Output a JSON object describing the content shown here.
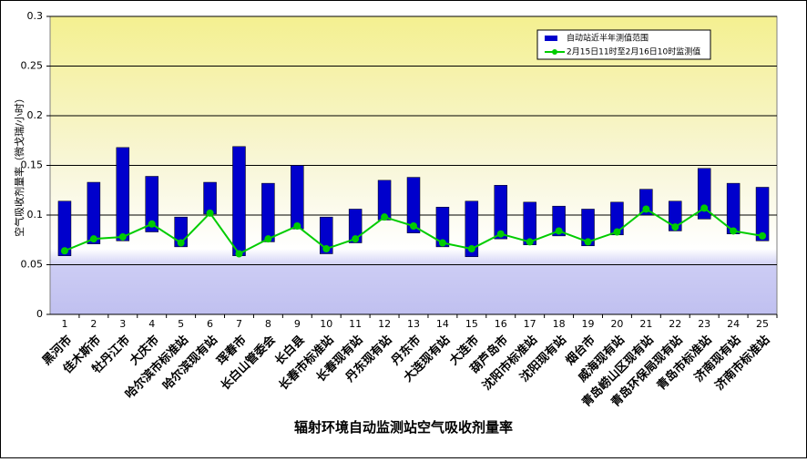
{
  "chart_data": {
    "type": "bar",
    "title": "辐射环境自动监测站空气吸收剂量率",
    "y_label": "空气吸收剂量率（微戈瑞/小时）",
    "category_numbers": [
      1,
      2,
      3,
      4,
      5,
      6,
      7,
      8,
      9,
      10,
      11,
      12,
      13,
      14,
      15,
      16,
      17,
      18,
      19,
      20,
      21,
      22,
      23,
      24,
      25
    ],
    "categories": [
      "黑河市",
      "佳木斯市",
      "牡丹江市",
      "大庆市",
      "哈尔滨市标准站",
      "哈尔滨现有站",
      "珲春市",
      "长白山管委会",
      "长白县",
      "长春市标准站",
      "长春现有站",
      "丹东现有站",
      "丹东市",
      "大连现有站",
      "大连市",
      "葫芦岛市",
      "沈阳市标准站",
      "沈阳现有站",
      "烟台市",
      "威海现有站",
      "青岛崂山区现有站",
      "青岛环保局现有站",
      "青岛市标准站",
      "济南现有站",
      "济南市标准站"
    ],
    "series": [
      {
        "name": "自动站近半年测值范围",
        "color": "#0000cc",
        "low": [
          0.059,
          0.071,
          0.074,
          0.083,
          0.068,
          0.101,
          0.059,
          0.073,
          0.086,
          0.061,
          0.072,
          0.095,
          0.082,
          0.068,
          0.058,
          0.076,
          0.07,
          0.079,
          0.069,
          0.08,
          0.1,
          0.084,
          0.096,
          0.081,
          0.074
        ],
        "high": [
          0.114,
          0.133,
          0.168,
          0.139,
          0.098,
          0.133,
          0.169,
          0.132,
          0.15,
          0.098,
          0.106,
          0.135,
          0.138,
          0.108,
          0.114,
          0.13,
          0.113,
          0.109,
          0.106,
          0.113,
          0.126,
          0.114,
          0.147,
          0.132,
          0.128
        ]
      },
      {
        "name": "2月15日11时至2月16日10时监测值",
        "color": "#00cc00",
        "values": [
          0.064,
          0.076,
          0.078,
          0.091,
          0.072,
          0.102,
          0.061,
          0.076,
          0.089,
          0.066,
          0.076,
          0.098,
          0.089,
          0.072,
          0.066,
          0.081,
          0.073,
          0.084,
          0.073,
          0.083,
          0.106,
          0.088,
          0.107,
          0.084,
          0.079
        ]
      }
    ],
    "ylim": [
      0,
      0.3
    ],
    "yticks": [
      0,
      0.05,
      0.1,
      0.15,
      0.2,
      0.25,
      0.3
    ],
    "grid": true
  }
}
